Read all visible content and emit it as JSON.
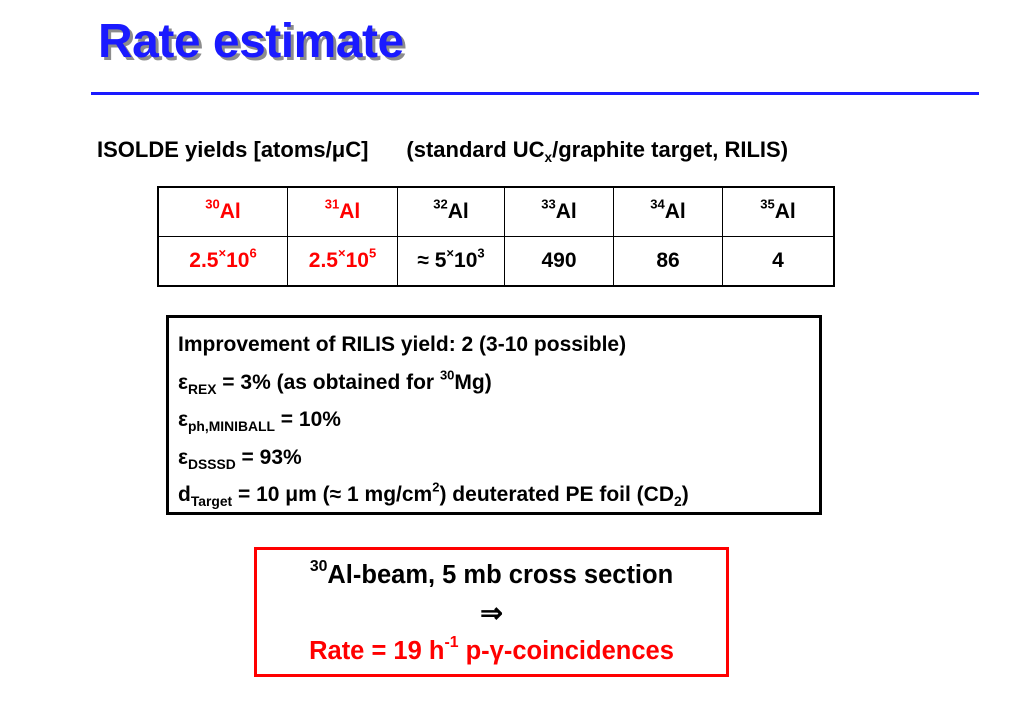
{
  "slide": {
    "title": "Rate estimate",
    "colors": {
      "title": "#1a1aff",
      "accent_red": "#ff0000"
    }
  },
  "subtitle": {
    "text_a": "ISOLDE yields [atoms/",
    "mu": "μ",
    "text_b": "C]",
    "text_c": "(standard UC",
    "sub_x": "x",
    "text_d": "/graphite target, RILIS)"
  },
  "yield_table": {
    "isotopes": [
      {
        "mass": "30",
        "symbol": "Al"
      },
      {
        "mass": "31",
        "symbol": "Al"
      },
      {
        "mass": "32",
        "symbol": "Al"
      },
      {
        "mass": "33",
        "symbol": "Al"
      },
      {
        "mass": "34",
        "symbol": "Al"
      },
      {
        "mass": "35",
        "symbol": "Al"
      }
    ],
    "yields": [
      {
        "mant": "2.5",
        "times": "×",
        "base": "10",
        "exp": "6"
      },
      {
        "mant": "2.5",
        "times": "×",
        "base": "10",
        "exp": "5"
      },
      {
        "approx": "≈",
        "mant": "5",
        "times": "×",
        "base": "10",
        "exp": "3"
      },
      {
        "value": "490"
      },
      {
        "value": "86"
      },
      {
        "value": "4"
      }
    ]
  },
  "params": {
    "line1": "Improvement of RILIS yield: 2 (3-10 possible)",
    "eps": "ε",
    "rex_sub": "REX",
    "rex_text": " = 3%  (as obtained for ",
    "rex_mass": "30",
    "rex_end": "Mg)",
    "ph_sub": "ph,MINIBALL",
    "ph_text": " = 10%",
    "dsssd_sub": "DSSSD",
    "dsssd_text": " = 93%",
    "d": "d",
    "target_sub": "Target",
    "target_a": " = 10 ",
    "target_mu": "μ",
    "target_b": "m (",
    "target_approx": "≈",
    "target_c": " 1 mg/cm",
    "target_exp": "2",
    "target_d": ") deuterated PE foil (CD",
    "target_sub2": "2",
    "target_e": ")"
  },
  "result": {
    "mass": "30",
    "line1": "Al-beam, 5 mb cross section",
    "arrow": "⇒",
    "rate_a": "Rate = 19 h",
    "rate_exp": "-1",
    "rate_b": " p-",
    "gamma": "γ",
    "rate_c": "-coincidences"
  }
}
